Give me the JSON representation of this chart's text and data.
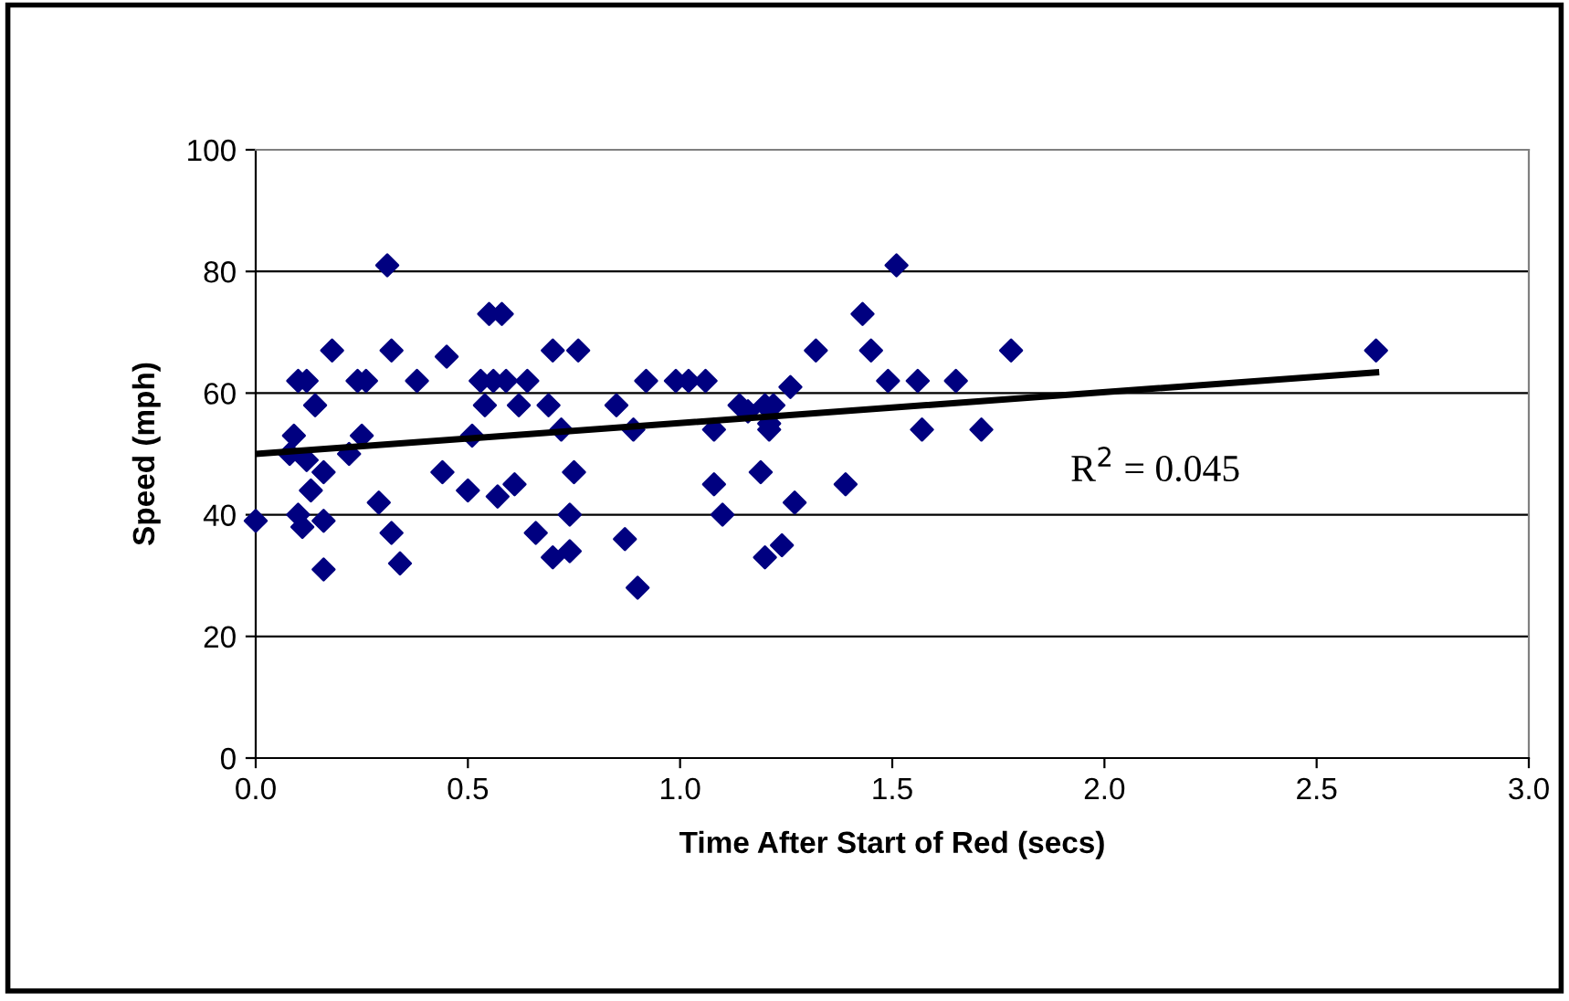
{
  "chart_data": {
    "type": "scatter",
    "xlabel": "Time After Start of Red (secs)",
    "ylabel": "Speed (mph)",
    "xlim": [
      0,
      3
    ],
    "xticks": [
      {
        "value": 0,
        "label": "0.0"
      },
      {
        "value": 0.5,
        "label": "0.5"
      },
      {
        "value": 1,
        "label": "1.0"
      },
      {
        "value": 1.5,
        "label": "1.5"
      },
      {
        "value": 2,
        "label": "2.0"
      },
      {
        "value": 2.5,
        "label": "2.5"
      },
      {
        "value": 3,
        "label": "3.0"
      }
    ],
    "ylim": [
      0,
      100
    ],
    "yticks": [
      0,
      20,
      40,
      60,
      80,
      100
    ],
    "grid": "y",
    "marker": "diamond",
    "annotations": [
      "R$^{2}$ = 0.045"
    ],
    "series": [
      {
        "color": "#000080",
        "x": [
          0.0,
          0.08,
          0.09,
          0.1,
          0.11,
          0.1,
          0.12,
          0.12,
          0.13,
          0.14,
          0.16,
          0.16,
          0.16,
          0.18,
          0.22,
          0.24,
          0.25,
          0.26,
          0.29,
          0.31,
          0.32,
          0.32,
          0.34,
          0.38,
          0.44,
          0.45,
          0.5,
          0.51,
          0.53,
          0.54,
          0.55,
          0.56,
          0.57,
          0.58,
          0.59,
          0.61,
          0.62,
          0.64,
          0.66,
          0.69,
          0.7,
          0.7,
          0.72,
          0.74,
          0.74,
          0.75,
          0.76,
          0.85,
          0.87,
          0.89,
          0.9,
          0.92,
          0.99,
          1.02,
          1.06,
          1.08,
          1.08,
          1.1,
          1.14,
          1.16,
          1.19,
          1.2,
          1.2,
          1.21,
          1.21,
          1.22,
          1.24,
          1.26,
          1.27,
          1.32,
          1.39,
          1.43,
          1.45,
          1.49,
          1.51,
          1.56,
          1.57,
          1.65,
          1.71,
          1.78,
          2.64
        ],
        "values": [
          39,
          50,
          53,
          40,
          38,
          62,
          62,
          49,
          44,
          58,
          47,
          39,
          31,
          67,
          50,
          62,
          53,
          62,
          42,
          81,
          67,
          37,
          32,
          62,
          47,
          66,
          44,
          53,
          62,
          58,
          73,
          62,
          43,
          73,
          62,
          45,
          58,
          62,
          37,
          58,
          67,
          33,
          54,
          34,
          40,
          47,
          67,
          58,
          36,
          54,
          28,
          62,
          62,
          62,
          62,
          54,
          45,
          40,
          58,
          57,
          47,
          58,
          33,
          54,
          55,
          58,
          35,
          61,
          42,
          67,
          45,
          73,
          67,
          62,
          81,
          62,
          54,
          62,
          54,
          67,
          67
        ]
      },
      {
        "type": "line",
        "color": "#000000",
        "x": [
          0,
          2.64
        ],
        "values": [
          50,
          63.4
        ],
        "marker": "none"
      }
    ]
  }
}
